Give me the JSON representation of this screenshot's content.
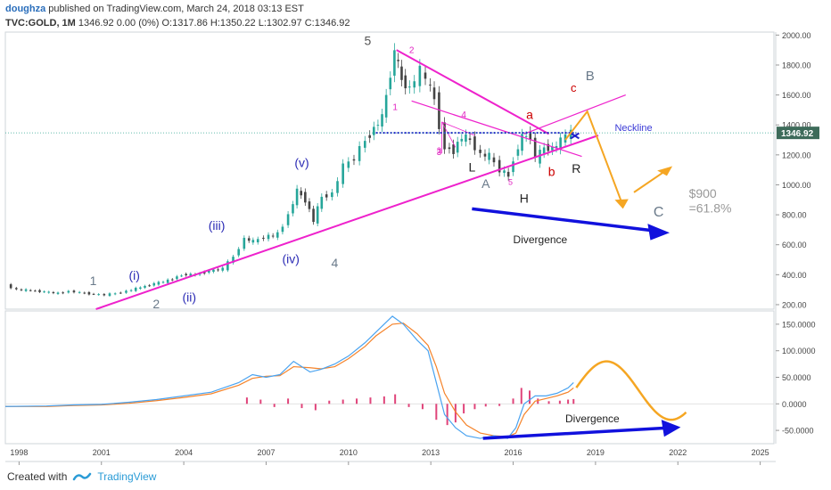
{
  "header": {
    "author": "doughza",
    "published_text": "published on TradingView.com, March 24, 2018 03:13 EST",
    "symbol": "TVC:GOLD, 1M",
    "ohlc": "1346.92 0.00 (0%) O:1317.86 H:1350.22 L:1302.97 C:1346.92"
  },
  "footer": {
    "created_with": "Created with",
    "brand": "TradingView",
    "logo_icon": "tradingview-logo-icon"
  },
  "chart_data": {
    "type": "candlestick",
    "x_ticks": [
      "1998",
      "2001",
      "2004",
      "2007",
      "2010",
      "2013",
      "2016",
      "2019",
      "2022",
      "2025"
    ],
    "x_range": [
      1997.5,
      2025.5
    ],
    "price_axis": {
      "ticks": [
        "2000.00",
        "1800.00",
        "1600.00",
        "1400.00",
        "1200.00",
        "1000.00",
        "800.00",
        "600.00",
        "400.00",
        "200.00"
      ],
      "range": [
        170,
        2020
      ],
      "last_price_label": "1346.92",
      "last_price": 1346.92
    },
    "price_series": [
      [
        1997.6,
        330
      ],
      [
        1998.0,
        300
      ],
      [
        1998.5,
        295
      ],
      [
        1999.0,
        285
      ],
      [
        1999.5,
        275
      ],
      [
        1999.9,
        290
      ],
      [
        2000.3,
        280
      ],
      [
        2000.8,
        270
      ],
      [
        2001.2,
        265
      ],
      [
        2001.6,
        275
      ],
      [
        2002.0,
        290
      ],
      [
        2002.5,
        315
      ],
      [
        2003.0,
        340
      ],
      [
        2003.5,
        360
      ],
      [
        2004.0,
        400
      ],
      [
        2004.5,
        400
      ],
      [
        2005.0,
        425
      ],
      [
        2005.5,
        440
      ],
      [
        2005.9,
        520
      ],
      [
        2006.3,
        640
      ],
      [
        2006.6,
        620
      ],
      [
        2007.0,
        650
      ],
      [
        2007.5,
        670
      ],
      [
        2007.9,
        800
      ],
      [
        2008.2,
        960
      ],
      [
        2008.5,
        900
      ],
      [
        2008.8,
        760
      ],
      [
        2009.1,
        920
      ],
      [
        2009.5,
        940
      ],
      [
        2009.9,
        1120
      ],
      [
        2010.3,
        1180
      ],
      [
        2010.7,
        1300
      ],
      [
        2011.0,
        1380
      ],
      [
        2011.3,
        1450
      ],
      [
        2011.6,
        1750
      ],
      [
        2011.75,
        1880
      ],
      [
        2012.0,
        1700
      ],
      [
        2012.3,
        1640
      ],
      [
        2012.7,
        1760
      ],
      [
        2012.9,
        1700
      ],
      [
        2013.2,
        1580
      ],
      [
        2013.4,
        1400
      ],
      [
        2013.6,
        1250
      ],
      [
        2013.9,
        1230
      ],
      [
        2014.2,
        1320
      ],
      [
        2014.5,
        1300
      ],
      [
        2014.9,
        1200
      ],
      [
        2015.2,
        1190
      ],
      [
        2015.6,
        1100
      ],
      [
        2015.9,
        1060
      ],
      [
        2016.1,
        1180
      ],
      [
        2016.4,
        1320
      ],
      [
        2016.7,
        1330
      ],
      [
        2016.9,
        1170
      ],
      [
        2017.2,
        1250
      ],
      [
        2017.5,
        1240
      ],
      [
        2017.8,
        1290
      ],
      [
        2018.0,
        1330
      ],
      [
        2018.2,
        1347
      ]
    ],
    "price_annotations": {
      "neckline_label": "Neckline",
      "neckline_price": 1347,
      "wave_labels": [
        "5",
        "2",
        "1",
        "4",
        "3",
        "a",
        "c",
        "B",
        "b",
        "R",
        "L",
        "H",
        "A",
        "5",
        "3",
        "(v)",
        "(iii)",
        "(iv)",
        "4",
        "(i)",
        "(ii)",
        "1",
        "2",
        "C"
      ],
      "target_label_1": "$900",
      "target_label_2": "=61.8%",
      "divergence_label": "Divergence"
    },
    "macd_axis": {
      "ticks": [
        "150.0000",
        "100.0000",
        "50.0000",
        "0.0000",
        "-50.0000"
      ],
      "range": [
        -75,
        175
      ]
    },
    "macd_series": [
      [
        1997.5,
        -5
      ],
      [
        1999,
        -4
      ],
      [
        2000,
        -2
      ],
      [
        2001,
        -1
      ],
      [
        2002,
        3
      ],
      [
        2003,
        8
      ],
      [
        2004,
        15
      ],
      [
        2005,
        22
      ],
      [
        2006,
        40
      ],
      [
        2006.5,
        55
      ],
      [
        2007,
        50
      ],
      [
        2007.5,
        55
      ],
      [
        2008,
        80
      ],
      [
        2008.6,
        60
      ],
      [
        2009,
        65
      ],
      [
        2009.5,
        75
      ],
      [
        2010,
        90
      ],
      [
        2010.6,
        115
      ],
      [
        2011,
        135
      ],
      [
        2011.6,
        165
      ],
      [
        2012,
        150
      ],
      [
        2012.5,
        120
      ],
      [
        2012.9,
        100
      ],
      [
        2013.2,
        40
      ],
      [
        2013.5,
        -20
      ],
      [
        2013.9,
        -45
      ],
      [
        2014.3,
        -60
      ],
      [
        2014.8,
        -65
      ],
      [
        2015.3,
        -60
      ],
      [
        2015.8,
        -65
      ],
      [
        2016.1,
        -45
      ],
      [
        2016.4,
        0
      ],
      [
        2016.8,
        15
      ],
      [
        2017.2,
        15
      ],
      [
        2017.6,
        20
      ],
      [
        2018.0,
        30
      ],
      [
        2018.2,
        40
      ]
    ],
    "signal_series": [
      [
        1997.5,
        -5
      ],
      [
        1999,
        -5
      ],
      [
        2000,
        -3
      ],
      [
        2001,
        -2
      ],
      [
        2002,
        1
      ],
      [
        2003,
        6
      ],
      [
        2004,
        12
      ],
      [
        2005,
        19
      ],
      [
        2006,
        35
      ],
      [
        2006.5,
        48
      ],
      [
        2007,
        52
      ],
      [
        2007.5,
        53
      ],
      [
        2008,
        70
      ],
      [
        2008.6,
        68
      ],
      [
        2009,
        66
      ],
      [
        2009.5,
        70
      ],
      [
        2010,
        85
      ],
      [
        2010.6,
        108
      ],
      [
        2011,
        128
      ],
      [
        2011.6,
        150
      ],
      [
        2012,
        152
      ],
      [
        2012.5,
        132
      ],
      [
        2012.9,
        110
      ],
      [
        2013.2,
        70
      ],
      [
        2013.5,
        20
      ],
      [
        2013.9,
        -15
      ],
      [
        2014.3,
        -40
      ],
      [
        2014.8,
        -55
      ],
      [
        2015.3,
        -60
      ],
      [
        2015.8,
        -62
      ],
      [
        2016.1,
        -55
      ],
      [
        2016.4,
        -20
      ],
      [
        2016.8,
        5
      ],
      [
        2017.2,
        10
      ],
      [
        2017.6,
        15
      ],
      [
        2018.0,
        22
      ],
      [
        2018.2,
        30
      ]
    ],
    "histogram": [
      [
        2006.3,
        12
      ],
      [
        2006.8,
        8
      ],
      [
        2007.3,
        -6
      ],
      [
        2007.8,
        10
      ],
      [
        2008.3,
        -8
      ],
      [
        2008.8,
        -12
      ],
      [
        2009.3,
        6
      ],
      [
        2009.8,
        8
      ],
      [
        2010.3,
        10
      ],
      [
        2010.8,
        12
      ],
      [
        2011.3,
        14
      ],
      [
        2011.7,
        18
      ],
      [
        2012.2,
        -6
      ],
      [
        2012.7,
        -10
      ],
      [
        2013.2,
        -30
      ],
      [
        2013.6,
        -40
      ],
      [
        2013.9,
        -35
      ],
      [
        2014.2,
        -18
      ],
      [
        2014.6,
        -10
      ],
      [
        2015.0,
        -5
      ],
      [
        2015.5,
        -4
      ],
      [
        2016.0,
        10
      ],
      [
        2016.3,
        30
      ],
      [
        2016.6,
        25
      ],
      [
        2016.9,
        10
      ],
      [
        2017.3,
        5
      ],
      [
        2017.7,
        6
      ],
      [
        2018.0,
        8
      ],
      [
        2018.2,
        9
      ]
    ],
    "macd_annotations": {
      "divergence_label": "Divergence"
    },
    "colors": {
      "candle_up": "#26a69a",
      "candle_down": "#444444",
      "trendline": "#ee22cc",
      "neckline": "#2222cc",
      "projection": "#f5a623",
      "divergence_arrow": "#1111dd",
      "macd_line": "#4aa3f0",
      "signal_line": "#f5832a",
      "histogram": "#e0447a",
      "last_price_box": "#3d6b5a"
    }
  }
}
